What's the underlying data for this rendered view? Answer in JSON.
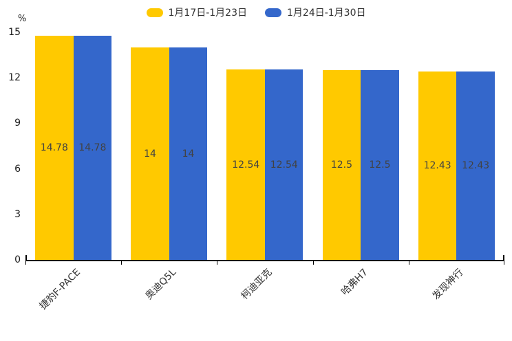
{
  "chart_data": {
    "type": "bar",
    "title": "",
    "unit": "%",
    "categories": [
      "捷豹F-PACE",
      "奥迪Q5L",
      "柯迪亚克",
      "哈弗H7",
      "发现神行"
    ],
    "series": [
      {
        "name": "1月17日-1月23日",
        "color": "#FFC900",
        "values": [
          14.78,
          14,
          12.54,
          12.5,
          12.43
        ]
      },
      {
        "name": "1月24日-1月30日",
        "color": "#3467CB",
        "values": [
          14.78,
          14,
          12.54,
          12.5,
          12.43
        ]
      }
    ],
    "ylim": [
      0,
      15
    ],
    "yticks": [
      0,
      3,
      6,
      9,
      12,
      15
    ],
    "grid": false,
    "legend_position": "top",
    "value_label_color": "#424242",
    "axis_color": "#000000"
  }
}
